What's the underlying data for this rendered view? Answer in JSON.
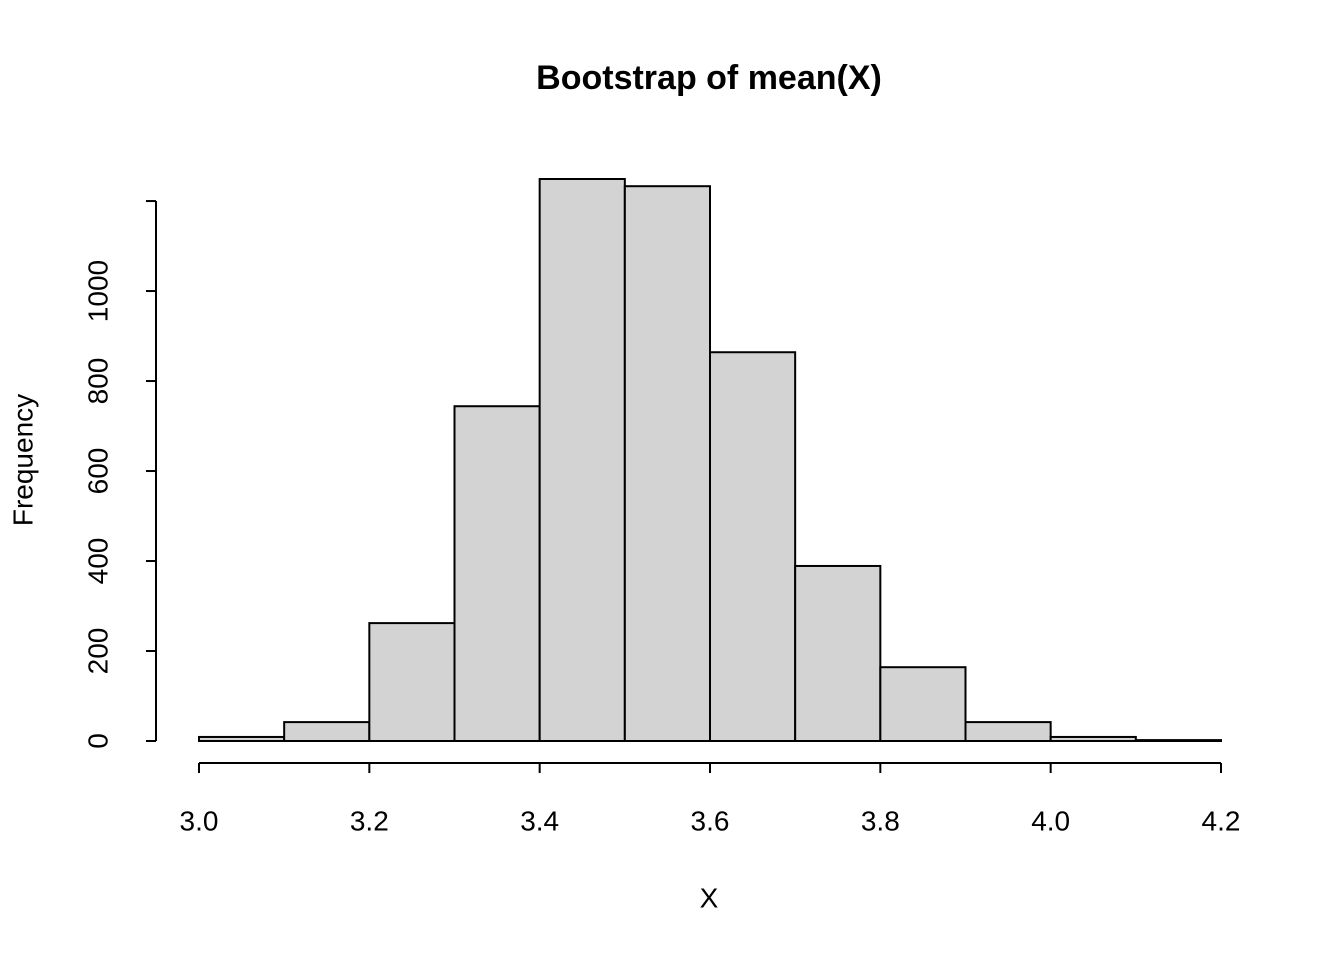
{
  "chart_data": {
    "type": "histogram",
    "title": "Bootstrap of mean(X)",
    "xlabel": "X",
    "ylabel": "Frequency",
    "bins": [
      3.0,
      3.1,
      3.2,
      3.3,
      3.4,
      3.5,
      3.6,
      3.7,
      3.8,
      3.9,
      4.0,
      4.1,
      4.2
    ],
    "values": [
      9,
      42,
      262,
      744,
      1249,
      1233,
      864,
      389,
      164,
      42,
      9,
      2
    ],
    "color": "#d3d3d3",
    "xlim": [
      3.0,
      4.2
    ],
    "xticks": [
      {
        "value": 3.0,
        "label": "3.0"
      },
      3.2,
      3.4,
      3.6,
      3.8,
      {
        "value": 4.0,
        "label": "4.0"
      },
      4.2
    ],
    "ylim": [
      0,
      1249
    ],
    "yticks": [
      0,
      200,
      400,
      600,
      800,
      1000,
      1200
    ]
  }
}
